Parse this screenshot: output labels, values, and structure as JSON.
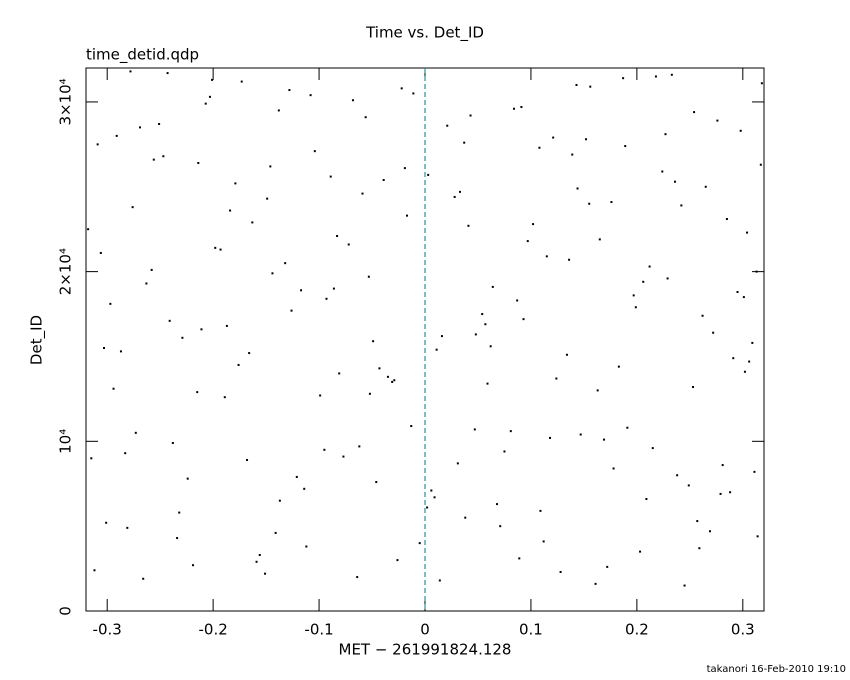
{
  "chart_data": {
    "type": "scatter",
    "title": "Time vs. Det_ID",
    "subtitle": "time_detid.qdp",
    "xlabel": "MET − 261991824.128",
    "ylabel": "Det_ID",
    "footer": "takanori 16-Feb-2010 19:10",
    "color": "#000000",
    "xlim": [
      -0.32,
      0.32
    ],
    "ylim": [
      0,
      32000
    ],
    "xticks": [
      -0.3,
      -0.2,
      -0.1,
      0,
      0.1,
      0.2,
      0.3
    ],
    "yticks": [
      0,
      {
        "value": 10000,
        "label": "10⁴"
      },
      {
        "value": 20000,
        "label": "2×10⁴"
      },
      {
        "value": 30000,
        "label": "3×10⁴"
      }
    ],
    "reference_line": {
      "x": 0,
      "color": "#2a8fa8",
      "style": "dashed"
    },
    "x": [
      -0.312,
      -0.287,
      -0.251,
      -0.224,
      -0.198,
      -0.173,
      -0.141,
      -0.117,
      -0.089,
      -0.062,
      -0.035,
      -0.011,
      0.014,
      0.041,
      0.068,
      0.093,
      0.121,
      0.147,
      0.176,
      0.203,
      0.229,
      0.254,
      0.281,
      0.306,
      0.317,
      -0.301,
      -0.276,
      -0.243,
      -0.215,
      -0.187,
      -0.159,
      -0.132,
      -0.104,
      -0.077,
      -0.049,
      -0.022,
      0.006,
      0.033,
      0.059,
      0.087,
      0.112,
      0.139,
      0.165,
      0.191,
      0.218,
      0.245,
      0.272,
      0.298,
      0.311,
      -0.318,
      -0.294,
      -0.263,
      -0.232,
      -0.207,
      -0.179,
      -0.151,
      -0.126,
      -0.095,
      -0.068,
      -0.043,
      -0.017,
      0.009,
      0.037,
      0.062,
      0.089,
      0.115,
      0.143,
      0.169,
      0.197,
      0.224,
      0.249,
      0.276,
      0.302,
      -0.306,
      -0.281,
      -0.256,
      -0.229,
      -0.203,
      -0.168,
      -0.144,
      -0.112,
      -0.083,
      -0.056,
      -0.029,
      0.002,
      0.028,
      0.054,
      0.081,
      0.108,
      0.134,
      0.161,
      0.187,
      0.212,
      0.238,
      0.265,
      0.291,
      0.314,
      -0.297,
      -0.269,
      -0.238,
      -0.211,
      -0.184,
      -0.156,
      -0.128,
      -0.099,
      -0.072,
      -0.046,
      -0.019,
      0.011,
      0.038,
      0.064,
      0.091,
      0.118,
      0.144,
      0.172,
      0.199,
      0.227,
      0.253,
      0.279,
      0.304,
      -0.309,
      -0.283,
      -0.258,
      -0.234,
      -0.201,
      -0.176,
      -0.149,
      -0.121,
      -0.093,
      -0.064,
      -0.039,
      -0.013,
      0.016,
      0.043,
      0.071,
      0.097,
      0.124,
      0.152,
      0.178,
      0.206,
      0.233,
      0.259,
      0.285,
      0.309,
      -0.315,
      -0.291,
      -0.266,
      -0.241,
      -0.214,
      -0.189,
      -0.163,
      -0.137,
      -0.108,
      -0.081,
      -0.053,
      -0.026,
      0.003,
      0.031,
      0.057,
      0.084,
      0.109,
      0.136,
      0.163,
      0.189,
      0.215,
      0.242,
      0.269,
      0.295,
      0.318,
      -0.303,
      -0.273,
      -0.247,
      -0.219,
      -0.193,
      -0.166,
      -0.138,
      -0.114,
      -0.086,
      -0.059,
      -0.031,
      -0.005,
      0.021,
      0.048,
      0.075,
      0.102,
      0.128,
      0.156,
      0.183,
      0.209,
      0.236,
      0.262,
      0.288,
      0.313,
      -0.278,
      -0.146,
      -0.052,
      0.047,
      0.155,
      0.257,
      0.301
    ],
    "values": [
      2400,
      15300,
      28700,
      7800,
      21400,
      31200,
      4600,
      18900,
      25600,
      9700,
      13800,
      30500,
      1800,
      22700,
      6300,
      17200,
      27900,
      10400,
      24100,
      3500,
      19600,
      29400,
      8600,
      14700,
      26300,
      5200,
      23800,
      31700,
      12900,
      16800,
      2900,
      20500,
      27100,
      9100,
      15900,
      30800,
      7100,
      24700,
      13400,
      18300,
      4100,
      26900,
      21900,
      10800,
      31500,
      1500,
      16400,
      28300,
      8200,
      22500,
      13100,
      19300,
      5800,
      29900,
      25200,
      2200,
      17700,
      9500,
      30100,
      14300,
      23300,
      6700,
      27600,
      15600,
      3100,
      20900,
      31000,
      10100,
      18600,
      25900,
      7400,
      28900,
      14100,
      21100,
      4900,
      26600,
      16100,
      30300,
      8900,
      19900,
      3800,
      22100,
      29100,
      13600,
      6100,
      24400,
      17500,
      10600,
      27300,
      15100,
      1600,
      31400,
      20300,
      8000,
      25000,
      14900,
      4400,
      18100,
      28500,
      9900,
      16600,
      23600,
      3300,
      30700,
      12700,
      21600,
      7600,
      26100,
      15400,
      5500,
      19100,
      29700,
      10200,
      24900,
      2600,
      17900,
      28100,
      13200,
      6900,
      22300,
      27500,
      9300,
      20100,
      4300,
      31300,
      14500,
      24300,
      7900,
      18400,
      2000,
      25400,
      10900,
      16200,
      29200,
      5000,
      21800,
      13700,
      27800,
      8400,
      19400,
      31600,
      3700,
      23100,
      15800,
      9000,
      28000,
      1900,
      17100,
      26400,
      12600,
      22900,
      6500,
      30400,
      14000,
      19700,
      3000,
      25700,
      8700,
      16900,
      29600,
      5900,
      20700,
      13000,
      27400,
      9600,
      23900,
      4700,
      18800,
      31100,
      15500,
      10500,
      26800,
      2700,
      21300,
      15200,
      29500,
      7200,
      19000,
      24600,
      13500,
      4000,
      28600,
      16300,
      9400,
      22800,
      2300,
      30900,
      14400,
      6600,
      25300,
      17400,
      7000,
      20000,
      31800,
      26200,
      12800,
      10700,
      24000,
      5300,
      18500
    ]
  }
}
